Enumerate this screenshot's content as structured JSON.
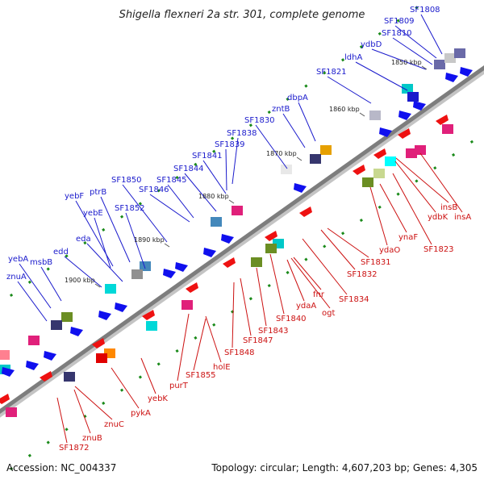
{
  "title": "Shigella flexneri 2a str. 301, complete genome",
  "footer": {
    "accession": "Accession: NC_004337",
    "stats": "Topology: circular; Length: 4,607,203 bp; Genes: 4,305"
  },
  "colors": {
    "upper_label": "#1a1acc",
    "lower_label": "#cc1111",
    "backbone": "#7d7d7d",
    "tick": "#1a8a1a"
  },
  "ruler": [
    "1850 kbp",
    "1860 kbp",
    "1870 kbp",
    "1880 kbp",
    "1890 kbp",
    "1900 kbp"
  ],
  "upper_labels": [
    "SF1808",
    "SF1809",
    "SF1810",
    "ydbD",
    "ldhA",
    "SF1821",
    "dbpA",
    "zntB",
    "SF1830",
    "SF1838",
    "SF1839",
    "SF1841",
    "SF1844",
    "SF1845",
    "SF1846",
    "SF1850",
    "ptrB",
    "SF1852",
    "yebF",
    "yebE",
    "eda",
    "edd",
    "yebA",
    "msbB",
    "znuA"
  ],
  "lower_labels": [
    "insB",
    "ydbK",
    "insA",
    "SF1823",
    "ynaF",
    "ydaO",
    "SF1831",
    "SF1832",
    "SF1834",
    "ogt",
    "fnr",
    "ydaA",
    "SF1840",
    "SF1843",
    "SF1847",
    "SF1848",
    "holE",
    "SF1855",
    "purT",
    "yebK",
    "pykA",
    "znuC",
    "znuB",
    "SF1872"
  ]
}
